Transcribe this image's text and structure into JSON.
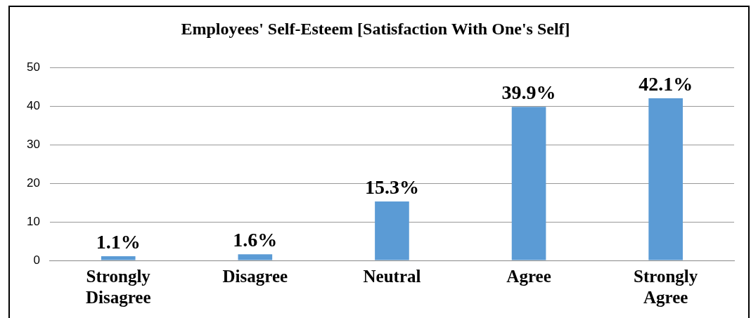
{
  "chart_data": {
    "type": "bar",
    "title": "Employees' Self-Esteem [Satisfaction With One's Self]",
    "categories": [
      "Strongly Disagree",
      "Disagree",
      "Neutral",
      "Agree",
      "Strongly Agree"
    ],
    "values": [
      1.1,
      1.6,
      15.3,
      39.9,
      42.1
    ],
    "value_labels": [
      "1.1%",
      "1.6%",
      "15.3%",
      "39.9%",
      "42.1%"
    ],
    "color": "#5b9bd5",
    "ylim": [
      0,
      50
    ],
    "yticks": [
      0,
      10,
      20,
      30,
      40,
      50
    ],
    "grid": "y"
  }
}
